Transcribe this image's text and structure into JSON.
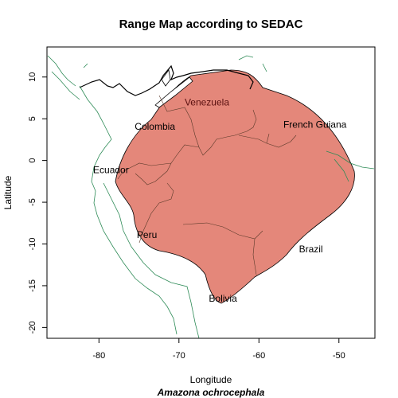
{
  "title": "Range Map according to SEDAC",
  "xlabel": "Longitude",
  "ylabel": "Latitude",
  "species": "Amazona ochrocephala",
  "colors": {
    "range_fill": "#e4877a",
    "coast": "#2e8b57",
    "border": "#5a3a2a"
  },
  "axes": {
    "x_ticks": [
      "-80",
      "-70",
      "-60",
      "-50"
    ],
    "y_ticks": [
      "10",
      "5",
      "0",
      "-5",
      "-10",
      "-15",
      "-20"
    ]
  },
  "chart_data": {
    "type": "map",
    "xlim": [
      -86.5,
      -45.5
    ],
    "ylim": [
      -21.3,
      13.6
    ],
    "labels": [
      {
        "text": "Venezuela",
        "lon": -66.5,
        "lat": 6.6
      },
      {
        "text": "Colombia",
        "lon": -73,
        "lat": 3.7
      },
      {
        "text": "French Guiana",
        "lon": -53,
        "lat": 3.9
      },
      {
        "text": "Ecuador",
        "lon": -78.5,
        "lat": -1.5
      },
      {
        "text": "Peru",
        "lon": -74,
        "lat": -9.3
      },
      {
        "text": "Brazil",
        "lon": -53.5,
        "lat": -11
      },
      {
        "text": "Bolivia",
        "lon": -64.5,
        "lat": -16.9
      }
    ]
  }
}
